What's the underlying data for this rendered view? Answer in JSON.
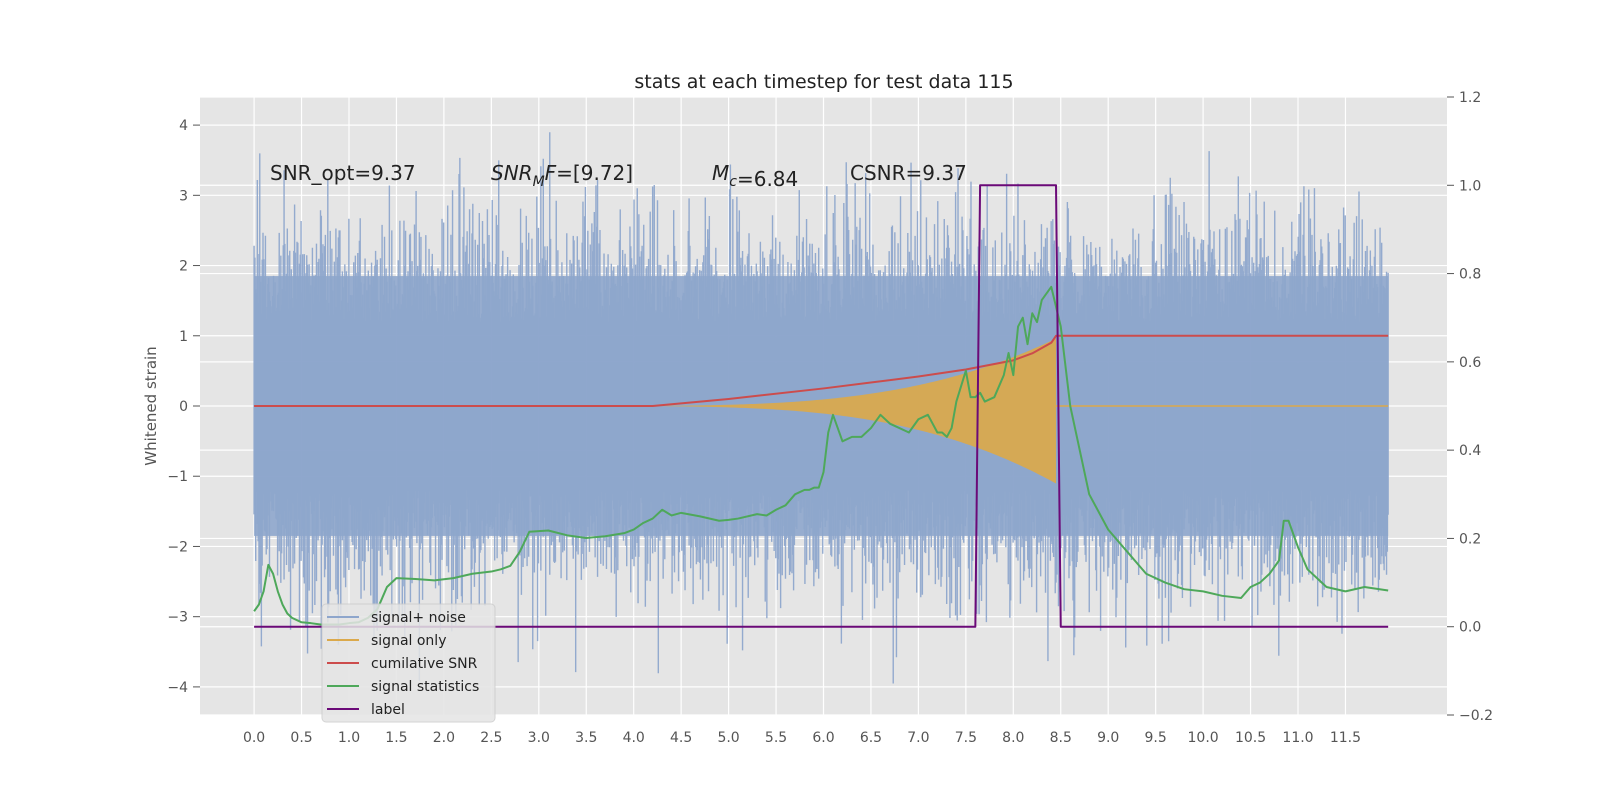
{
  "chart_data": {
    "type": "line",
    "title": "stats at each timestep for test data 115",
    "ylabel": "Whitened strain",
    "x_ticks": [
      "0.0",
      "0.5",
      "1.0",
      "1.5",
      "2.0",
      "2.5",
      "3.0",
      "3.5",
      "4.0",
      "4.5",
      "5.0",
      "5.5",
      "6.0",
      "6.5",
      "7.0",
      "7.5",
      "8.0",
      "8.5",
      "9.0",
      "9.5",
      "10.0",
      "10.5",
      "11.0",
      "11.5"
    ],
    "xlim": [
      -0.57,
      12.57
    ],
    "ylim_left": [
      -4.4,
      4.4
    ],
    "ylim_right": [
      -0.2,
      1.2
    ],
    "y_ticks_left": [
      "4",
      "3",
      "2",
      "1",
      "0",
      "−1",
      "−2",
      "−3",
      "−4"
    ],
    "y_ticks_right": [
      "1.2",
      "1.0",
      "0.8",
      "0.6",
      "0.4",
      "0.2",
      "0.0",
      "−0.2"
    ],
    "grid": true,
    "legend_position": "lower-left",
    "annotations": [
      {
        "kind": "plain",
        "text": "SNR_opt=9.37"
      },
      {
        "kind": "math",
        "sym": "SNR",
        "sub": "M",
        "sym2": "F",
        "rest": "=[9.72]"
      },
      {
        "kind": "math",
        "sym": "M",
        "sub": "c",
        "sym2": "",
        "rest": "=6.84"
      },
      {
        "kind": "plain",
        "text": "CSNR=9.37"
      }
    ],
    "series": [
      {
        "name": "signal+ noise",
        "color": "#8ea6cc",
        "axis": "left",
        "note_amplitude": 4.0
      },
      {
        "name": "signal only",
        "color": "#dba94b",
        "axis": "left",
        "x_start": 4.2,
        "x_merger": 8.45,
        "peak_amplitude": 0.9
      },
      {
        "name": "cumilative SNR",
        "color": "#cc4c4c",
        "axis": "left",
        "x": [
          0,
          4.2,
          5,
          6,
          7,
          7.5,
          8,
          8.2,
          8.4,
          8.45,
          11.95
        ],
        "y": [
          0,
          0,
          0.1,
          0.25,
          0.42,
          0.52,
          0.65,
          0.75,
          0.9,
          1.0,
          1.0
        ]
      },
      {
        "name": "signal statistics",
        "color": "#4ea85a",
        "axis": "right",
        "x": [
          0,
          0.05,
          0.1,
          0.15,
          0.2,
          0.25,
          0.3,
          0.35,
          0.4,
          0.5,
          0.6,
          0.7,
          0.8,
          0.9,
          1.0,
          1.1,
          1.2,
          1.3,
          1.4,
          1.5,
          1.7,
          1.9,
          2.1,
          2.3,
          2.5,
          2.6,
          2.7,
          2.8,
          2.9,
          3.1,
          3.3,
          3.5,
          3.7,
          3.9,
          4.0,
          4.1,
          4.2,
          4.3,
          4.4,
          4.5,
          4.7,
          4.9,
          5.0,
          5.1,
          5.3,
          5.4,
          5.5,
          5.6,
          5.7,
          5.8,
          5.85,
          5.9,
          5.95,
          6.0,
          6.05,
          6.1,
          6.2,
          6.3,
          6.4,
          6.5,
          6.6,
          6.7,
          6.8,
          6.9,
          7.0,
          7.1,
          7.2,
          7.25,
          7.3,
          7.35,
          7.4,
          7.5,
          7.55,
          7.6,
          7.65,
          7.7,
          7.8,
          7.9,
          7.95,
          8.0,
          8.05,
          8.1,
          8.15,
          8.2,
          8.25,
          8.3,
          8.4,
          8.5,
          8.6,
          8.8,
          9.0,
          9.2,
          9.4,
          9.6,
          9.8,
          10.0,
          10.2,
          10.4,
          10.5,
          10.6,
          10.7,
          10.8,
          10.85,
          10.9,
          10.95,
          11.0,
          11.1,
          11.2,
          11.3,
          11.5,
          11.7,
          11.95
        ],
        "y": [
          0.035,
          0.05,
          0.08,
          0.14,
          0.12,
          0.08,
          0.05,
          0.03,
          0.02,
          0.01,
          0.008,
          0.005,
          0.005,
          0.005,
          0.008,
          0.01,
          0.02,
          0.04,
          0.09,
          0.11,
          0.108,
          0.105,
          0.11,
          0.12,
          0.125,
          0.13,
          0.138,
          0.17,
          0.215,
          0.218,
          0.207,
          0.201,
          0.205,
          0.212,
          0.22,
          0.235,
          0.245,
          0.265,
          0.252,
          0.258,
          0.25,
          0.24,
          0.242,
          0.245,
          0.255,
          0.252,
          0.265,
          0.275,
          0.3,
          0.31,
          0.31,
          0.315,
          0.315,
          0.35,
          0.44,
          0.48,
          0.42,
          0.43,
          0.43,
          0.45,
          0.48,
          0.46,
          0.45,
          0.44,
          0.47,
          0.48,
          0.44,
          0.44,
          0.43,
          0.45,
          0.51,
          0.58,
          0.52,
          0.52,
          0.53,
          0.51,
          0.52,
          0.57,
          0.62,
          0.57,
          0.68,
          0.7,
          0.64,
          0.71,
          0.69,
          0.74,
          0.77,
          0.68,
          0.5,
          0.3,
          0.22,
          0.17,
          0.12,
          0.1,
          0.085,
          0.08,
          0.07,
          0.065,
          0.09,
          0.1,
          0.12,
          0.15,
          0.24,
          0.24,
          0.21,
          0.18,
          0.13,
          0.11,
          0.09,
          0.08,
          0.09,
          0.082
        ]
      },
      {
        "name": "label",
        "color": "#6b0a78",
        "axis": "right",
        "x": [
          0,
          7.6,
          7.65,
          8.45,
          8.5,
          11.95
        ],
        "y": [
          0,
          0,
          1,
          1,
          0,
          0
        ]
      }
    ]
  }
}
